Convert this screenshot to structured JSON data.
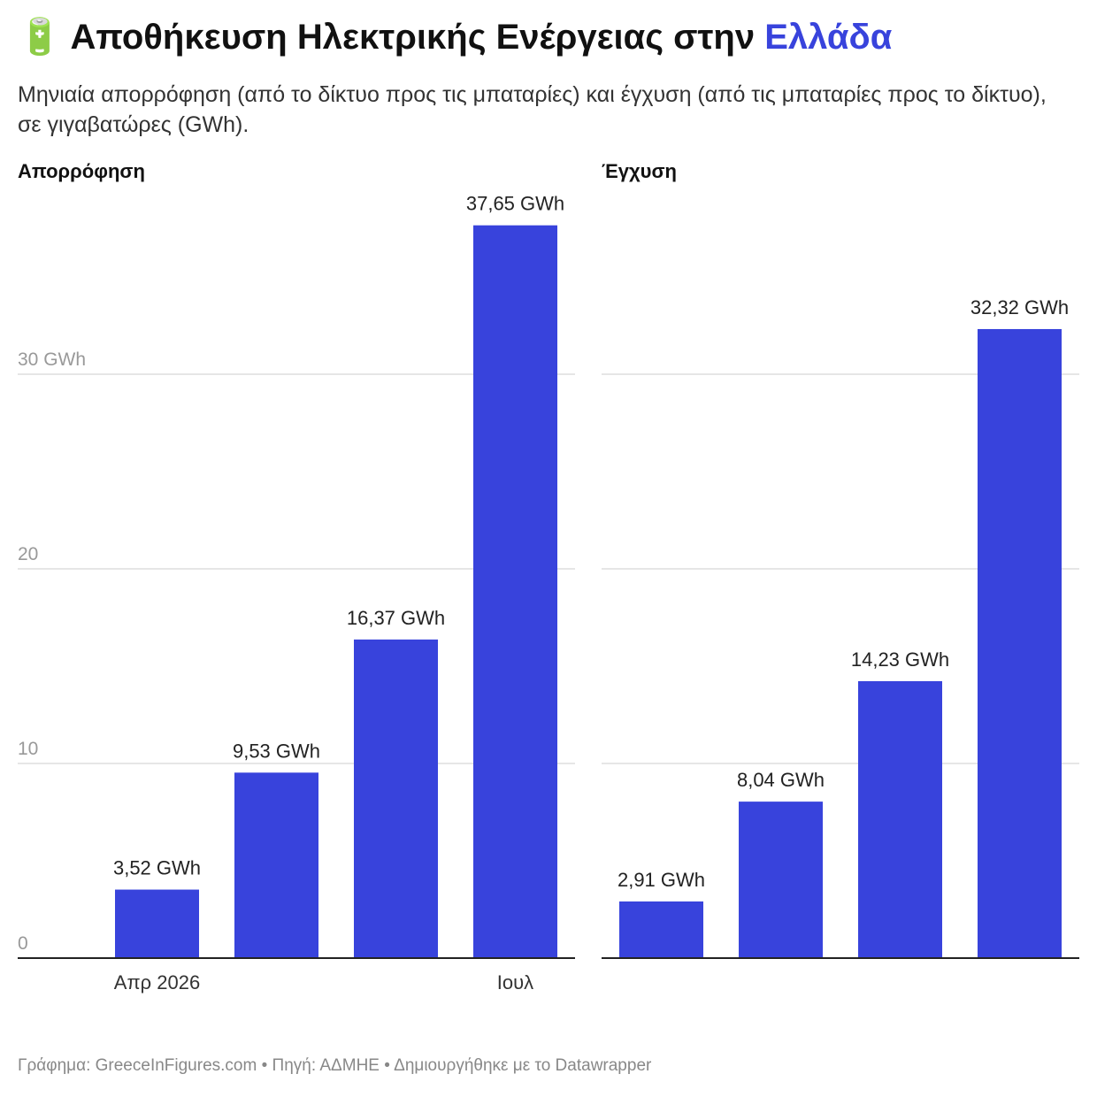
{
  "title_icon": "🔋",
  "title": "Αποθήκευση Ηλεκτρικής Ενέργειας στην",
  "title_highlight": "Ελλάδα",
  "subtitle": "Μηνιαία απορρόφηση (από το δίκτυο προς τις μπαταρίες) και έγχυση (από τις μπαταρίες προς το δίκτυο), σε γιγαβατώρες (GWh).",
  "source": "Γράφημα: GreeceInFigures.com • Πηγή: ΑΔΜΗΕ • Δημιουργήθηκε με το Datawrapper",
  "chart_data": [
    {
      "type": "bar",
      "title": "Απορρόφηση",
      "categories": [
        "Απρ 2026",
        null,
        null,
        "Ιουλ"
      ],
      "values": [
        3.52,
        9.53,
        16.37,
        37.65
      ],
      "value_labels": [
        "3,52 GWh",
        "9,53 GWh",
        "16,37 GWh",
        "37,65 GWh"
      ],
      "color": "#3843dc",
      "ylim": [
        0,
        40
      ],
      "yticks": [
        0,
        10,
        20,
        {
          "value": 30,
          "label": "30 GWh"
        }
      ],
      "grid": true,
      "tick_labels": true
    },
    {
      "type": "bar",
      "title": "Έγχυση",
      "categories": [
        null,
        null,
        null,
        null
      ],
      "values": [
        2.91,
        8.04,
        14.23,
        32.32
      ],
      "value_labels": [
        "2,91 GWh",
        "8,04 GWh",
        "14,23 GWh",
        "32,32 GWh"
      ],
      "color": "#3843dc",
      "ylim": [
        0,
        40
      ],
      "yticks": [
        0,
        10,
        20,
        30
      ],
      "grid": true,
      "tick_labels": false
    }
  ]
}
